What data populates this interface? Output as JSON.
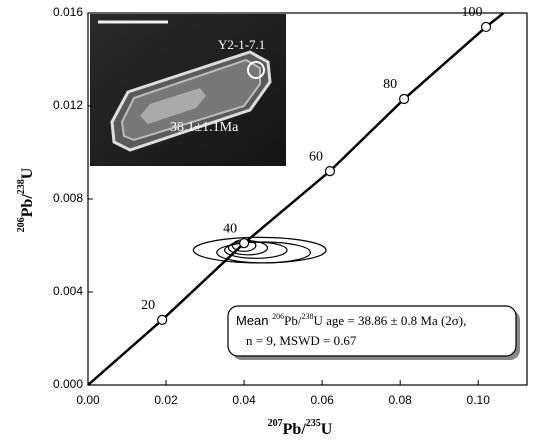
{
  "chart_data": {
    "type": "concordia",
    "x_label": [
      "207",
      "Pb/",
      "235",
      "U"
    ],
    "y_label": [
      "206",
      "Pb/",
      "238",
      "U"
    ],
    "xlim": [
      0,
      0.1125
    ],
    "ylim": [
      0,
      0.016
    ],
    "xticks": [
      {
        "value": 0,
        "label": "0.00"
      },
      {
        "value": 0.02,
        "label": "0.02"
      },
      {
        "value": 0.04,
        "label": "0.04"
      },
      {
        "value": 0.06,
        "label": "0.06"
      },
      {
        "value": 0.08,
        "label": "0.08"
      },
      {
        "value": 0.1,
        "label": "0.10"
      }
    ],
    "yticks": [
      {
        "value": 0,
        "label": "0.000"
      },
      {
        "value": 0.004,
        "label": "0.004"
      },
      {
        "value": 0.008,
        "label": "0.008"
      },
      {
        "value": 0.012,
        "label": "0.012"
      },
      {
        "value": 0.016,
        "label": "0.016"
      }
    ],
    "concordia": {
      "color": "#000000",
      "x": [
        0,
        0.019,
        0.04,
        0.062,
        0.081,
        0.102,
        0.1065
      ],
      "y": [
        0,
        0.0028,
        0.0061,
        0.0092,
        0.0123,
        0.0154,
        0.016
      ]
    },
    "age_markers": {
      "labels": [
        "20",
        "40",
        "60",
        "80",
        "100"
      ],
      "x": [
        0.019,
        0.04,
        0.062,
        0.081,
        0.102
      ],
      "y": [
        0.0028,
        0.0061,
        0.0092,
        0.0123,
        0.0154
      ]
    },
    "ellipses": [
      {
        "cx": 0.044,
        "cy": 0.0058,
        "rx": 0.017,
        "ry": 0.00055
      },
      {
        "cx": 0.045,
        "cy": 0.0057,
        "rx": 0.012,
        "ry": 0.00045
      },
      {
        "cx": 0.043,
        "cy": 0.0058,
        "rx": 0.008,
        "ry": 0.00035
      },
      {
        "cx": 0.041,
        "cy": 0.0059,
        "rx": 0.005,
        "ry": 0.0003
      },
      {
        "cx": 0.04,
        "cy": 0.006,
        "rx": 0.003,
        "ry": 0.00025
      }
    ],
    "annotation": {
      "line1": [
        "Mean ",
        "206",
        "Pb/",
        "238",
        "U age = 38.86 ± 0.8 Ma (2σ),"
      ],
      "line2": "n = 9, MSWD = 0.67"
    },
    "inset": {
      "spot_label": "Y2-1-7.1",
      "age_label": "38.1±1.1Ma"
    }
  }
}
